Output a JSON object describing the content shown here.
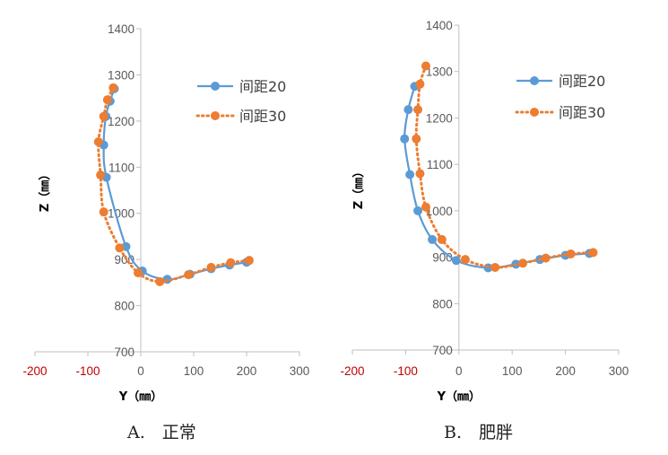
{
  "chart_data": [
    {
      "panel": "A",
      "type": "scatter",
      "caption": "A.　正常",
      "xlabel": "Y（㎜）",
      "ylabel": "Z（㎜）",
      "xlim": [
        -200,
        300
      ],
      "ylim": [
        700,
        1400
      ],
      "xticks": [
        "-200",
        "-100",
        "0",
        "100",
        "200",
        "300"
      ],
      "yticks": [
        "700",
        "800",
        "900",
        "1000",
        "1100",
        "1200",
        "1300",
        "1400"
      ],
      "legend_position": "top-right",
      "series": [
        {
          "name": "间距20",
          "color": "#5b9bd5",
          "line": "solid",
          "points": [
            [
              -50,
              1270
            ],
            [
              -58,
              1243
            ],
            [
              -66,
              1210
            ],
            [
              -70,
              1148
            ],
            [
              -65,
              1078
            ],
            [
              -28,
              928
            ],
            [
              3,
              875
            ],
            [
              50,
              857
            ],
            [
              93,
              868
            ],
            [
              133,
              880
            ],
            [
              168,
              888
            ],
            [
              200,
              894
            ]
          ]
        },
        {
          "name": "间距30",
          "color": "#ed7d31",
          "line": "dotted",
          "points": [
            [
              -52,
              1272
            ],
            [
              -63,
              1246
            ],
            [
              -70,
              1210
            ],
            [
              -80,
              1155
            ],
            [
              -76,
              1083
            ],
            [
              -70,
              1003
            ],
            [
              -40,
              925
            ],
            [
              -5,
              871
            ],
            [
              36,
              852
            ],
            [
              90,
              867
            ],
            [
              133,
              883
            ],
            [
              170,
              893
            ],
            [
              205,
              898
            ]
          ]
        }
      ]
    },
    {
      "panel": "B",
      "type": "scatter",
      "caption": "B.　肥胖",
      "xlabel": "Y（㎜）",
      "ylabel": "Z（㎜）",
      "xlim": [
        -200,
        300
      ],
      "ylim": [
        700,
        1400
      ],
      "xticks": [
        "-200",
        "-100",
        "0",
        "100",
        "200",
        "300"
      ],
      "yticks": [
        "700",
        "800",
        "900",
        "1000",
        "1100",
        "1200",
        "1300",
        "1400"
      ],
      "legend_position": "top-right",
      "series": [
        {
          "name": "间距20",
          "color": "#5b9bd5",
          "line": "solid",
          "points": [
            [
              -83,
              1268
            ],
            [
              -95,
              1218
            ],
            [
              -102,
              1155
            ],
            [
              -92,
              1078
            ],
            [
              -77,
              1000
            ],
            [
              -50,
              938
            ],
            [
              -5,
              893
            ],
            [
              55,
              877
            ],
            [
              107,
              885
            ],
            [
              152,
              895
            ],
            [
              200,
              904
            ],
            [
              245,
              908
            ]
          ]
        },
        {
          "name": "间距30",
          "color": "#ed7d31",
          "line": "dotted",
          "points": [
            [
              -62,
              1312
            ],
            [
              -73,
              1273
            ],
            [
              -77,
              1218
            ],
            [
              -80,
              1155
            ],
            [
              -73,
              1080
            ],
            [
              -62,
              1008
            ],
            [
              -32,
              938
            ],
            [
              12,
              895
            ],
            [
              68,
              878
            ],
            [
              120,
              887
            ],
            [
              163,
              898
            ],
            [
              210,
              907
            ],
            [
              252,
              910
            ]
          ]
        }
      ]
    }
  ]
}
